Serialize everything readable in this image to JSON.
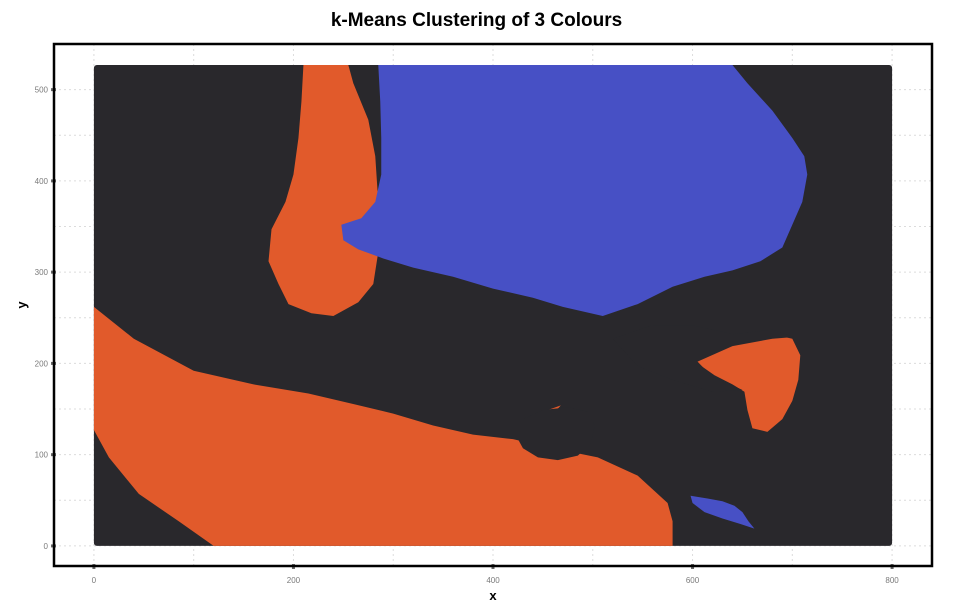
{
  "chart_data": {
    "type": "scatter",
    "title": "k-Means Clustering of 3 Colours",
    "xlabel": "x",
    "ylabel": "y",
    "xlim": [
      -40,
      840
    ],
    "ylim": [
      -22,
      550
    ],
    "x_ticks": [
      0,
      200,
      400,
      600,
      800
    ],
    "y_ticks": [
      0,
      100,
      200,
      300,
      400,
      500
    ],
    "grid": true,
    "image_extent": {
      "x": [
        0,
        800
      ],
      "y": [
        0,
        527
      ]
    },
    "cluster_colors": {
      "background": "#29282c",
      "orange": "#e15a2b",
      "blue": "#4750c5"
    },
    "grid_color": "#dcdcdc",
    "frame_color": "#000000"
  }
}
